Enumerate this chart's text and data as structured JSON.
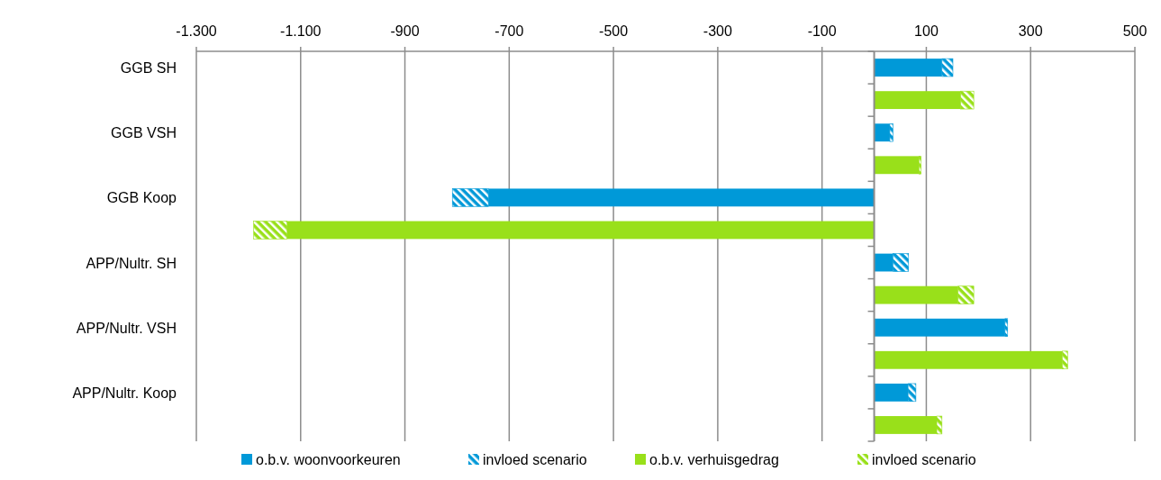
{
  "chart_data": {
    "type": "bar",
    "orientation": "horizontal",
    "stacked": true,
    "categories": [
      "GGB SH",
      null,
      "GGB VSH",
      null,
      "GGB Koop",
      null,
      "APP/Nultr. SH",
      null,
      "APP/Nultr. VSH",
      null,
      "APP/Nultr. Koop",
      null
    ],
    "series": [
      {
        "name": "o.b.v. woonvoorkeuren",
        "color": "#0099d8",
        "values": [
          130,
          null,
          30,
          null,
          -740,
          null,
          36,
          null,
          251,
          null,
          65,
          null
        ]
      },
      {
        "name": "invloed scenario",
        "color": "#0099d8",
        "values": [
          21,
          null,
          6,
          null,
          -69,
          null,
          30,
          null,
          5,
          null,
          15,
          null
        ]
      },
      {
        "name": "o.b.v. verhuisgedrag",
        "color": "#99e01a",
        "values": [
          null,
          166,
          null,
          86,
          null,
          -1126,
          null,
          161,
          null,
          361,
          null,
          120
        ]
      },
      {
        "name": "invloed scenario",
        "color": "#99e01a",
        "values": [
          null,
          25,
          null,
          4,
          null,
          -64,
          null,
          30,
          null,
          10,
          null,
          10
        ]
      }
    ],
    "xlim": [
      -1300,
      500
    ],
    "xticks": [
      {
        "value": -1300,
        "label": "-1.300"
      },
      {
        "value": -1100,
        "label": "-1.100"
      },
      -900,
      -700,
      -500,
      -300,
      -100,
      100,
      300,
      500
    ],
    "grid": "x",
    "legend": "bottom"
  }
}
